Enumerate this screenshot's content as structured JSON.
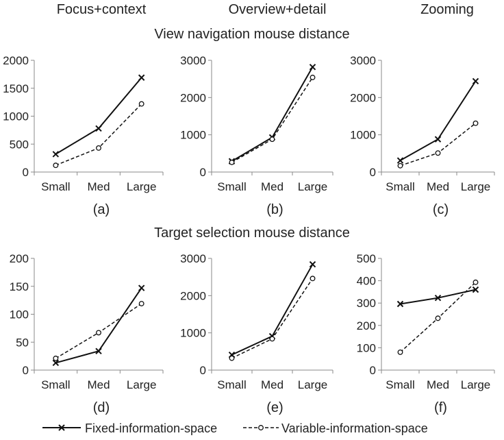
{
  "column_titles": [
    "Focus+context",
    "Overview+detail",
    "Zooming"
  ],
  "row_titles": [
    "View navigation mouse distance",
    "Target selection mouse distance"
  ],
  "legend": {
    "fixed": "Fixed-information-space",
    "variable": "Variable-information-space"
  },
  "chart_data": [
    {
      "type": "line",
      "label": "(a)",
      "categories": [
        "Small",
        "Med",
        "Large"
      ],
      "ylim": [
        0,
        2000
      ],
      "yticks": [
        0,
        500,
        1000,
        1500,
        2000
      ],
      "series": [
        {
          "name": "Fixed-information-space",
          "values": [
            320,
            780,
            1690
          ]
        },
        {
          "name": "Variable-information-space",
          "values": [
            120,
            430,
            1220
          ]
        }
      ]
    },
    {
      "type": "line",
      "label": "(b)",
      "categories": [
        "Small",
        "Med",
        "Large"
      ],
      "ylim": [
        0,
        3000
      ],
      "yticks": [
        0,
        1000,
        2000,
        3000
      ],
      "series": [
        {
          "name": "Fixed-information-space",
          "values": [
            290,
            930,
            2820
          ]
        },
        {
          "name": "Variable-information-space",
          "values": [
            260,
            880,
            2540
          ]
        }
      ]
    },
    {
      "type": "line",
      "label": "(c)",
      "categories": [
        "Small",
        "Med",
        "Large"
      ],
      "ylim": [
        0,
        3000
      ],
      "yticks": [
        0,
        1000,
        2000,
        3000
      ],
      "series": [
        {
          "name": "Fixed-information-space",
          "values": [
            310,
            880,
            2440
          ]
        },
        {
          "name": "Variable-information-space",
          "values": [
            170,
            510,
            1310
          ]
        }
      ]
    },
    {
      "type": "line",
      "label": "(d)",
      "categories": [
        "Small",
        "Med",
        "Large"
      ],
      "ylim": [
        0,
        200
      ],
      "yticks": [
        0,
        50,
        100,
        150,
        200
      ],
      "series": [
        {
          "name": "Fixed-information-space",
          "values": [
            13,
            34,
            147
          ]
        },
        {
          "name": "Variable-information-space",
          "values": [
            21,
            67,
            119
          ]
        }
      ]
    },
    {
      "type": "line",
      "label": "(e)",
      "categories": [
        "Small",
        "Med",
        "Large"
      ],
      "ylim": [
        0,
        3000
      ],
      "yticks": [
        0,
        1000,
        2000,
        3000
      ],
      "series": [
        {
          "name": "Fixed-information-space",
          "values": [
            410,
            910,
            2840
          ]
        },
        {
          "name": "Variable-information-space",
          "values": [
            320,
            840,
            2460
          ]
        }
      ]
    },
    {
      "type": "line",
      "label": "(f)",
      "categories": [
        "Small",
        "Med",
        "Large"
      ],
      "ylim": [
        0,
        500
      ],
      "yticks": [
        0,
        100,
        200,
        300,
        400,
        500
      ],
      "series": [
        {
          "name": "Fixed-information-space",
          "values": [
            296,
            323,
            360
          ]
        },
        {
          "name": "Variable-information-space",
          "values": [
            80,
            232,
            393
          ]
        }
      ]
    }
  ]
}
